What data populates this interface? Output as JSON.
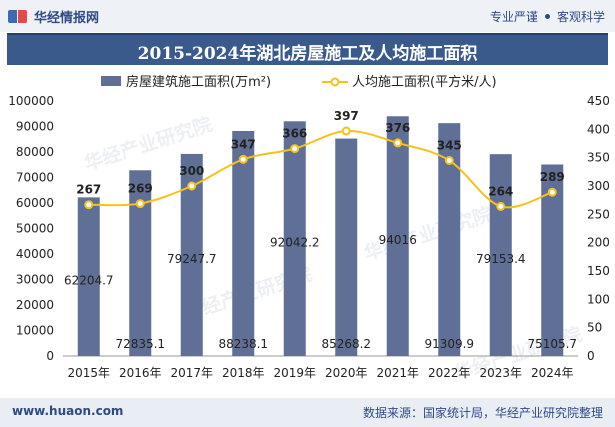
{
  "header": {
    "brand": "华经情报网",
    "right_a": "专业严谨",
    "right_b": "客观科学"
  },
  "footer": {
    "url": "www.huaon.com",
    "source": "数据来源：国家统计局，华经产业研究院整理"
  },
  "colors": {
    "bar": "#5f6f95",
    "line": "#f6c21b",
    "title_bg": "#3a5a8c"
  },
  "chart_data": {
    "type": "bar",
    "title": "2015-2024年湖北房屋施工及人均施工面积",
    "categories": [
      "2015年",
      "2016年",
      "2017年",
      "2018年",
      "2019年",
      "2020年",
      "2021年",
      "2022年",
      "2023年",
      "2024年"
    ],
    "series": [
      {
        "name": "房屋建筑施工面积(万m²)",
        "type": "bar",
        "axis": "left",
        "values": [
          62204.7,
          72835.1,
          79247.7,
          88238.1,
          92042.2,
          85268.2,
          94016,
          91309.9,
          79153.4,
          75105.7
        ],
        "labels": [
          "62204.7",
          "72835.1",
          "79247.7",
          "88238.1",
          "92042.2",
          "85268.2",
          "94016",
          "91309.9",
          "79153.4",
          "75105.7"
        ]
      },
      {
        "name": "人均施工面积(平方米/人)",
        "type": "line",
        "axis": "right",
        "values": [
          267,
          269,
          300,
          347,
          366,
          397,
          376,
          345,
          264,
          289
        ],
        "labels": [
          "267",
          "269",
          "300",
          "347",
          "366",
          "397",
          "376",
          "345",
          "264",
          "289"
        ]
      }
    ],
    "ylim_left": [
      0,
      100000
    ],
    "yticks_left": [
      "0",
      "10000",
      "20000",
      "30000",
      "40000",
      "50000",
      "60000",
      "70000",
      "80000",
      "90000",
      "100000"
    ],
    "ylim_right": [
      0,
      450
    ],
    "yticks_right": [
      "0",
      "50",
      "100",
      "150",
      "200",
      "250",
      "300",
      "350",
      "400",
      "450"
    ],
    "legend": "top-center",
    "grid": false
  }
}
